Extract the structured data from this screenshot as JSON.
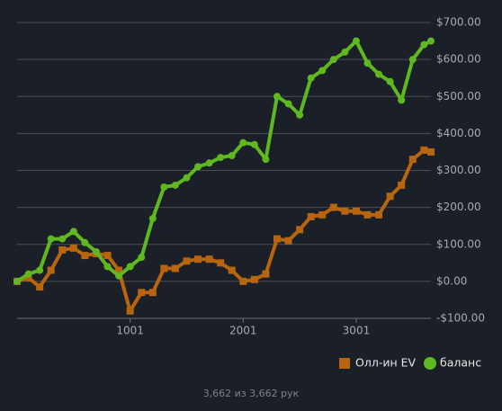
{
  "chart_data": {
    "type": "line",
    "x": [
      1,
      101,
      201,
      301,
      401,
      501,
      601,
      701,
      801,
      901,
      1001,
      1101,
      1201,
      1301,
      1401,
      1501,
      1601,
      1701,
      1801,
      1901,
      2001,
      2101,
      2201,
      2301,
      2401,
      2501,
      2601,
      2701,
      2801,
      2901,
      3001,
      3101,
      3201,
      3301,
      3401,
      3501,
      3601,
      3662
    ],
    "series": [
      {
        "name": "Олл-ин EV",
        "color": "#b8650f",
        "marker": "square",
        "values": [
          0,
          10,
          -15,
          30,
          85,
          90,
          70,
          75,
          70,
          30,
          -80,
          -30,
          -30,
          35,
          35,
          55,
          60,
          60,
          50,
          30,
          0,
          5,
          20,
          115,
          110,
          140,
          175,
          180,
          200,
          190,
          190,
          180,
          180,
          230,
          260,
          330,
          355,
          350
        ]
      },
      {
        "name": "баланс",
        "color": "#5fb820",
        "marker": "circle",
        "values": [
          0,
          20,
          30,
          115,
          115,
          135,
          105,
          80,
          40,
          15,
          40,
          65,
          170,
          255,
          260,
          280,
          310,
          320,
          335,
          340,
          375,
          370,
          330,
          500,
          480,
          450,
          550,
          570,
          600,
          620,
          650,
          590,
          560,
          540,
          490,
          600,
          640,
          650
        ]
      }
    ],
    "xlim": [
      1,
      3662
    ],
    "xticks": [
      1001,
      2001,
      3001
    ],
    "ylim": [
      -100,
      700
    ],
    "yticks": [
      {
        "value": -100,
        "label": "-$100.00"
      },
      {
        "value": 0,
        "label": "$0.00"
      },
      {
        "value": 100,
        "label": "$100.00"
      },
      {
        "value": 200,
        "label": "$200.00"
      },
      {
        "value": 300,
        "label": "$300.00"
      },
      {
        "value": 400,
        "label": "$400.00"
      },
      {
        "value": 500,
        "label": "$500.00"
      },
      {
        "value": 600,
        "label": "$600.00"
      },
      {
        "value": 700,
        "label": "$700.00"
      }
    ],
    "grid": true,
    "legend": "bottom-right",
    "footer": "3,662 из 3,662 рук"
  }
}
